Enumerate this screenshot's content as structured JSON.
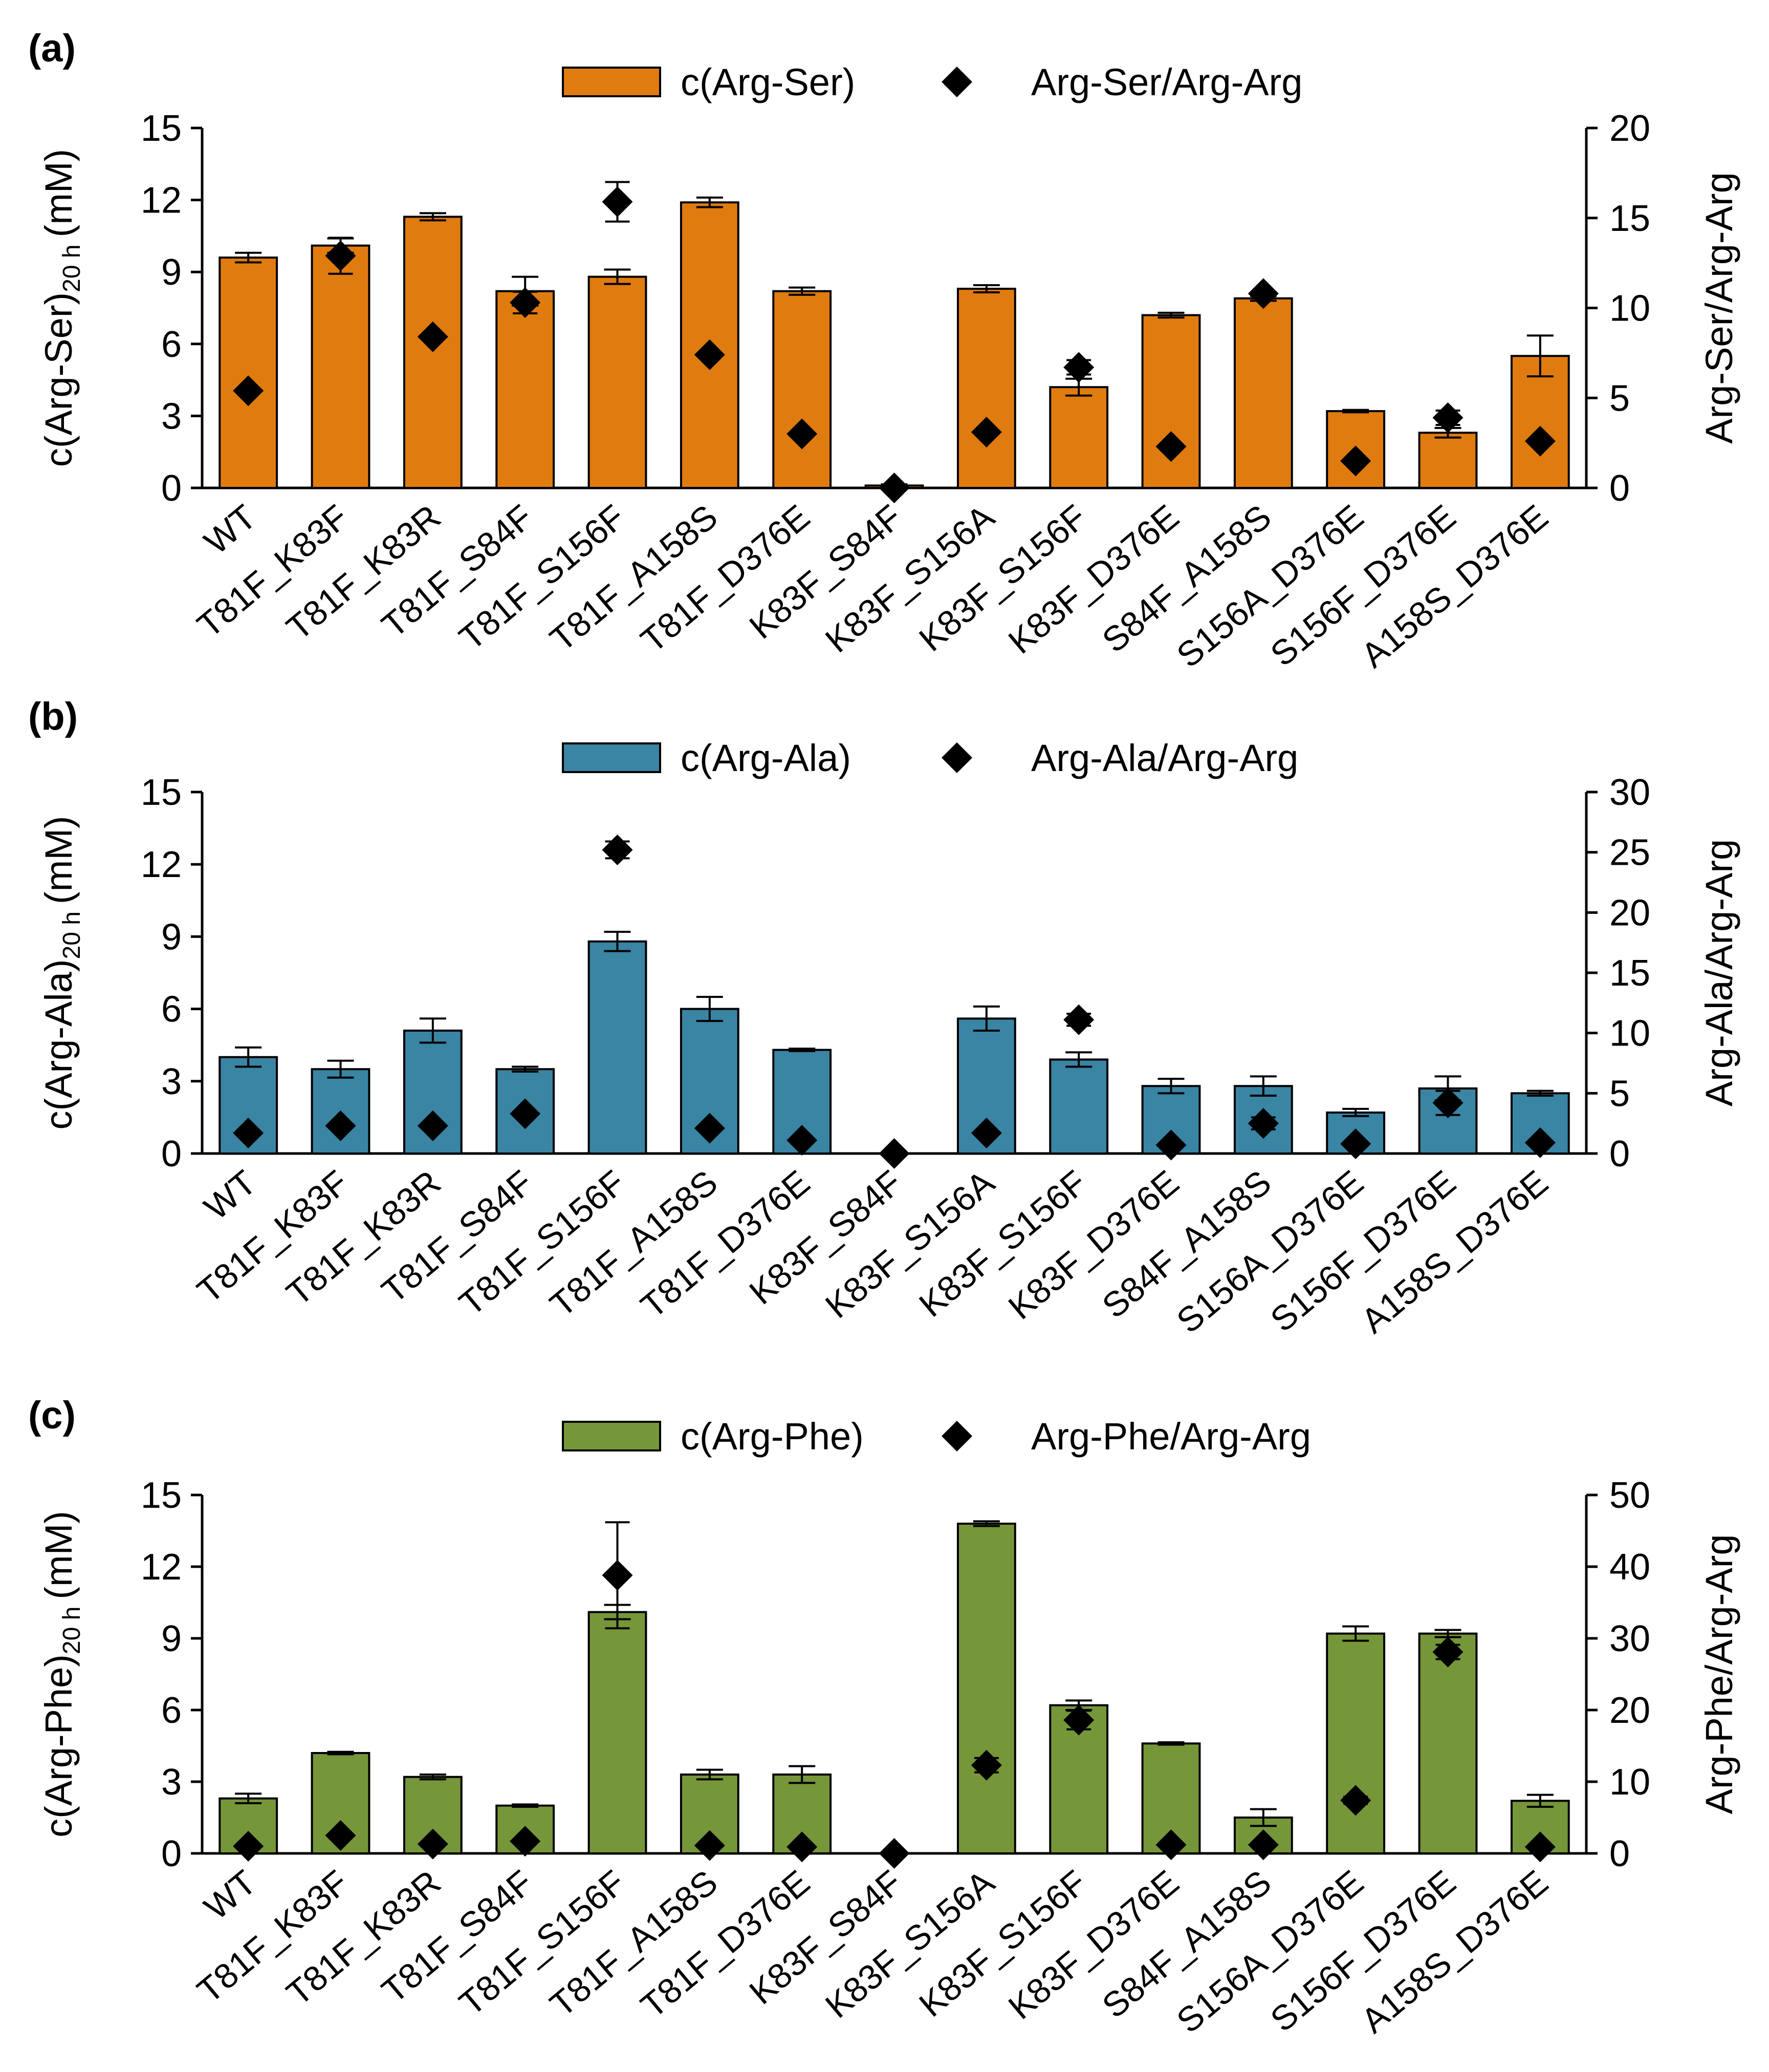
{
  "figure": {
    "panel_labels": [
      "(a)",
      "(b)",
      "(c)"
    ]
  },
  "chart_data": [
    {
      "type": "bar",
      "panel": "(a)",
      "color": "#e07b10",
      "categories": [
        "WT",
        "T81F_K83F",
        "T81F_K83R",
        "T81F_S84F",
        "T81F_S156F",
        "T81F_A158S",
        "T81F_D376E",
        "K83F_S84F",
        "K83F_S156A",
        "K83F_S156F",
        "K83F_D376E",
        "S84F_A158S",
        "S156A_D376E",
        "S156F_D376E",
        "A158S_D376E"
      ],
      "series": [
        {
          "name": "c(Arg-Ser)",
          "axis": "left",
          "marker": "bar",
          "values": [
            9.6,
            10.1,
            11.3,
            8.2,
            8.8,
            11.9,
            8.2,
            0.1,
            8.3,
            4.2,
            7.2,
            7.9,
            3.2,
            2.3,
            5.5
          ],
          "errors": [
            0.2,
            0.3,
            0.15,
            0.6,
            0.3,
            0.2,
            0.15,
            0.05,
            0.15,
            0.35,
            0.1,
            0.1,
            0.05,
            0.2,
            0.85
          ]
        },
        {
          "name": "Arg-Ser/Arg-Arg",
          "axis": "right",
          "marker": "diamond",
          "values": [
            5.4,
            12.9,
            8.4,
            10.3,
            15.9,
            7.4,
            3.0,
            0.0,
            3.1,
            6.7,
            2.3,
            10.8,
            1.5,
            3.9,
            2.6
          ],
          "errors": [
            0,
            1.0,
            0,
            0.6,
            1.1,
            0,
            0,
            0,
            0,
            0.4,
            0,
            0,
            0,
            0.4,
            0
          ]
        }
      ],
      "ylabel": "c(Arg-Ser)",
      "ylabel_sub": "20 h",
      "ylabel_unit": "(mM)",
      "y2label": "Arg-Ser/Arg-Arg",
      "ylim": [
        0,
        15
      ],
      "yticks": [
        "0",
        "3",
        "6",
        "9",
        "12",
        "15"
      ],
      "y2lim": [
        0,
        20
      ],
      "y2ticks": [
        "0",
        "5",
        "10",
        "15",
        "20"
      ],
      "legend": "top-center"
    },
    {
      "type": "bar",
      "panel": "(b)",
      "color": "#3a84a4",
      "categories": [
        "WT",
        "T81F_K83F",
        "T81F_K83R",
        "T81F_S84F",
        "T81F_S156F",
        "T81F_A158S",
        "T81F_D376E",
        "K83F_S84F",
        "K83F_S156A",
        "K83F_S156F",
        "K83F_D376E",
        "S84F_A158S",
        "S156A_D376E",
        "S156F_D376E",
        "A158S_D376E"
      ],
      "series": [
        {
          "name": "c(Arg-Ala)",
          "axis": "left",
          "marker": "bar",
          "values": [
            4.0,
            3.5,
            5.1,
            3.5,
            8.8,
            6.0,
            4.3,
            0.0,
            5.6,
            3.9,
            2.8,
            2.8,
            1.7,
            2.7,
            2.5
          ],
          "errors": [
            0.4,
            0.35,
            0.5,
            0.1,
            0.4,
            0.5,
            0.05,
            0,
            0.5,
            0.3,
            0.3,
            0.4,
            0.15,
            0.5,
            0.1
          ]
        },
        {
          "name": "Arg-Ala/Arg-Arg",
          "axis": "right",
          "marker": "diamond",
          "values": [
            1.7,
            2.3,
            2.3,
            3.3,
            25.2,
            2.1,
            1.1,
            0.0,
            1.7,
            11.1,
            0.7,
            2.5,
            0.8,
            4.2,
            0.9
          ],
          "errors": [
            0,
            0,
            0,
            0,
            0.7,
            0,
            0,
            0,
            0,
            0.5,
            0,
            0.5,
            0,
            1.0,
            0
          ]
        }
      ],
      "ylabel": "c(Arg-Ala)",
      "ylabel_sub": "20 h",
      "ylabel_unit": "(mM)",
      "y2label": "Arg-Ala/Arg-Arg",
      "ylim": [
        0,
        15
      ],
      "yticks": [
        "0",
        "3",
        "6",
        "9",
        "12",
        "15"
      ],
      "y2lim": [
        0,
        30
      ],
      "y2ticks": [
        "0",
        "5",
        "10",
        "15",
        "20",
        "25",
        "30"
      ],
      "legend": "top-center"
    },
    {
      "type": "bar",
      "panel": "(c)",
      "color": "#76963a",
      "categories": [
        "WT",
        "T81F_K83F",
        "T81F_K83R",
        "T81F_S84F",
        "T81F_S156F",
        "T81F_A158S",
        "T81F_D376E",
        "K83F_S84F",
        "K83F_S156A",
        "K83F_S156F",
        "K83F_D376E",
        "S84F_A158S",
        "S156A_D376E",
        "S156F_D376E",
        "A158S_D376E"
      ],
      "series": [
        {
          "name": "c(Arg-Phe)",
          "axis": "left",
          "marker": "bar",
          "values": [
            2.3,
            4.2,
            3.2,
            2.0,
            10.1,
            3.3,
            3.3,
            0.0,
            13.8,
            6.2,
            4.6,
            1.5,
            9.2,
            9.2,
            2.2
          ],
          "errors": [
            0.2,
            0.05,
            0.1,
            0.05,
            0.3,
            0.2,
            0.35,
            0,
            0.1,
            0.2,
            0.05,
            0.35,
            0.3,
            0.15,
            0.25
          ]
        },
        {
          "name": "Arg-Phe/Arg-Arg",
          "axis": "right",
          "marker": "diamond",
          "values": [
            1.0,
            2.5,
            1.3,
            1.7,
            38.8,
            1.1,
            0.9,
            0.0,
            12.3,
            18.6,
            1.2,
            1.2,
            7.4,
            28.1,
            0.9
          ],
          "errors": [
            0,
            0,
            0,
            0,
            7.4,
            0,
            0,
            0,
            1.0,
            1.3,
            0,
            0,
            0.5,
            1.0,
            0
          ]
        }
      ],
      "ylabel": "c(Arg-Phe)",
      "ylabel_sub": "20 h",
      "ylabel_unit": "(mM)",
      "y2label": "Arg-Phe/Arg-Arg",
      "ylim": [
        0,
        15
      ],
      "yticks": [
        "0",
        "3",
        "6",
        "9",
        "12",
        "15"
      ],
      "y2lim": [
        0,
        50
      ],
      "y2ticks": [
        "0",
        "10",
        "20",
        "30",
        "40",
        "50"
      ],
      "legend": "top-center"
    }
  ]
}
